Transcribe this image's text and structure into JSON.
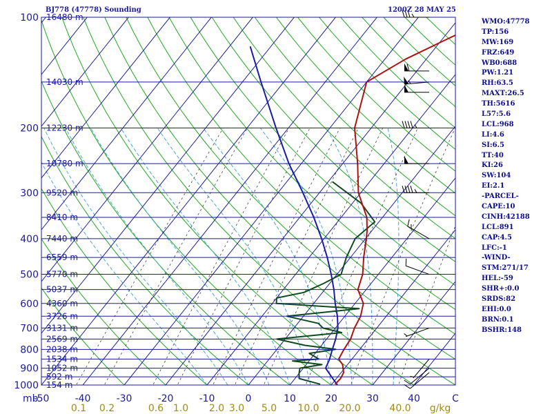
{
  "header": {
    "station": "BJ778 (47778) Sounding",
    "valid_time": "1200Z 28 MAY 25"
  },
  "indices": [
    "WMO:47778",
    "TP:156",
    "MW:169",
    "FRZ:649",
    "WB0:688",
    "PW:1.21",
    "RH:63.5",
    "MAXT:26.5",
    "TH:5616",
    "L57:5.6",
    "LCL:968",
    "LI:4.6",
    "SI:6.5",
    "TT:40",
    "KI:26",
    "SW:104",
    "EI:2.1",
    "-PARCEL-",
    "CAPE:10",
    "CINH:42188",
    "LCL:891",
    "CAP:4.5",
    "LFC:-1",
    "-WIND-",
    "STM:271/17",
    "HEL:-59",
    "SHR+:0.0",
    "SRDS:82",
    "EHI:0.0",
    "BRN:0.1",
    "BSHR:148"
  ],
  "chart_data": {
    "type": "skew-t log-p sounding",
    "y_unit": "mb",
    "x_unit": "C",
    "mix_unit": "g/kg",
    "y_range_mb": [
      1000,
      100
    ],
    "x_range_c": [
      -50,
      50
    ],
    "pressure_ticks": [
      {
        "p": 100,
        "label": "100"
      },
      {
        "p": 200,
        "label": "200"
      },
      {
        "p": 300,
        "label": "300"
      },
      {
        "p": 400,
        "label": "400"
      },
      {
        "p": 500,
        "label": "500"
      },
      {
        "p": 600,
        "label": "600"
      },
      {
        "p": 700,
        "label": "700"
      },
      {
        "p": 800,
        "label": "800"
      },
      {
        "p": 900,
        "label": "900"
      },
      {
        "p": 1000,
        "label": "1000"
      }
    ],
    "temp_ticks": [
      {
        "t": -50,
        "label": "-50"
      },
      {
        "t": -40,
        "label": "-40"
      },
      {
        "t": -30,
        "label": "-30"
      },
      {
        "t": -20,
        "label": "-20"
      },
      {
        "t": -10,
        "label": "-10"
      },
      {
        "t": 0,
        "label": "0"
      },
      {
        "t": 10,
        "label": "10"
      },
      {
        "t": 20,
        "label": "20"
      },
      {
        "t": 30,
        "label": "30"
      },
      {
        "t": 40,
        "label": "40"
      }
    ],
    "mixing_ratio_labels": [
      "0.1",
      "0.2",
      "0.6",
      "1.0",
      "2.0",
      "3.0",
      "5.0",
      "10.0",
      "20.0",
      "40.0"
    ],
    "height_levels": [
      {
        "p": 100,
        "label": "16480 m"
      },
      {
        "p": 150,
        "label": "14030 m"
      },
      {
        "p": 200,
        "label": "12230 m"
      },
      {
        "p": 250,
        "label": "10780 m"
      },
      {
        "p": 300,
        "label": "9520 m"
      },
      {
        "p": 350,
        "label": "8410 m"
      },
      {
        "p": 400,
        "label": "7440 m"
      },
      {
        "p": 450,
        "label": "6559 m"
      },
      {
        "p": 500,
        "label": "5770 m"
      },
      {
        "p": 550,
        "label": "5037 m"
      },
      {
        "p": 600,
        "label": "4360 m"
      },
      {
        "p": 650,
        "label": "3726 m"
      },
      {
        "p": 700,
        "label": "3131 m"
      },
      {
        "p": 750,
        "label": "2569 m"
      },
      {
        "p": 800,
        "label": "2038 m"
      },
      {
        "p": 850,
        "label": "1534 m"
      },
      {
        "p": 900,
        "label": "1052 m"
      },
      {
        "p": 950,
        "label": "592 m"
      },
      {
        "p": 1000,
        "label": "154 m"
      }
    ],
    "temperature": [
      [
        995,
        20.8
      ],
      [
        960,
        21.0
      ],
      [
        925,
        20.6
      ],
      [
        880,
        18.8
      ],
      [
        850,
        16.8
      ],
      [
        800,
        16.2
      ],
      [
        750,
        15.8
      ],
      [
        700,
        14.6
      ],
      [
        650,
        13.8
      ],
      [
        600,
        12.0
      ],
      [
        550,
        8.0
      ],
      [
        500,
        6.2
      ],
      [
        450,
        3.2
      ],
      [
        400,
        0.2
      ],
      [
        380,
        -1.2
      ],
      [
        350,
        -3.8
      ],
      [
        300,
        -10.6
      ],
      [
        250,
        -16.4
      ],
      [
        200,
        -24.0
      ],
      [
        150,
        -30.0
      ],
      [
        130,
        -25.0
      ],
      [
        115,
        -19.0
      ],
      [
        100,
        -12.0
      ]
    ],
    "dewpoint": [
      [
        995,
        17.2
      ],
      [
        960,
        11.0
      ],
      [
        930,
        10.0
      ],
      [
        900,
        9.2
      ],
      [
        880,
        13.8
      ],
      [
        860,
        6.0
      ],
      [
        850,
        12.0
      ],
      [
        820,
        8.6
      ],
      [
        800,
        14.2
      ],
      [
        780,
        6.0
      ],
      [
        750,
        -2.0
      ],
      [
        720,
        12.4
      ],
      [
        700,
        7.0
      ],
      [
        680,
        5.0
      ],
      [
        650,
        -4.0
      ],
      [
        620,
        12.0
      ],
      [
        600,
        -9.0
      ],
      [
        580,
        -10.0
      ],
      [
        560,
        -4.5
      ],
      [
        530,
        -1.5
      ],
      [
        500,
        1.0
      ],
      [
        450,
        -1.0
      ],
      [
        400,
        -2.5
      ],
      [
        360,
        -1.0
      ],
      [
        320,
        -8.0
      ],
      [
        280,
        -19.0
      ]
    ],
    "parcel": [
      [
        1000,
        21.5
      ],
      [
        950,
        18.5
      ],
      [
        900,
        15.4
      ],
      [
        850,
        14.6
      ],
      [
        800,
        13.4
      ],
      [
        750,
        12.2
      ],
      [
        700,
        10.6
      ],
      [
        650,
        8.2
      ],
      [
        600,
        5.2
      ],
      [
        550,
        2.2
      ],
      [
        500,
        -1.4
      ],
      [
        450,
        -5.6
      ],
      [
        400,
        -10.6
      ],
      [
        350,
        -16.6
      ],
      [
        300,
        -24.0
      ],
      [
        250,
        -33.0
      ],
      [
        200,
        -43.0
      ],
      [
        150,
        -55.5
      ],
      [
        120,
        -65.0
      ]
    ],
    "wind_barbs": [
      {
        "p": 100,
        "dir": 270,
        "kt": 35
      },
      {
        "p": 140,
        "dir": 270,
        "kt": 60
      },
      {
        "p": 150,
        "dir": 265,
        "kt": 55
      },
      {
        "p": 160,
        "dir": 270,
        "kt": 50
      },
      {
        "p": 200,
        "dir": 270,
        "kt": 45
      },
      {
        "p": 250,
        "dir": 270,
        "kt": 50
      },
      {
        "p": 300,
        "dir": 270,
        "kt": 45
      },
      {
        "p": 400,
        "dir": 300,
        "kt": 15
      },
      {
        "p": 500,
        "dir": 290,
        "kt": 10
      },
      {
        "p": 700,
        "dir": 250,
        "kt": 5
      },
      {
        "p": 850,
        "dir": 220,
        "kt": 5
      },
      {
        "p": 900,
        "dir": 230,
        "kt": 10
      },
      {
        "p": 925,
        "dir": 230,
        "kt": 10
      }
    ]
  },
  "colors": {
    "frame": "#1a1a9a",
    "isobar": "#1a1a9a",
    "isotherm": "#1a1a9a",
    "dry_adiabat": "#22a822",
    "moist_adiabat": "#4aa6d8",
    "mixing_ratio": "#404040",
    "temperature": "#b01010",
    "dewpoint": "#0f4a1e",
    "parcel": "#1a1aa8",
    "mix_label": "#a08c10"
  }
}
